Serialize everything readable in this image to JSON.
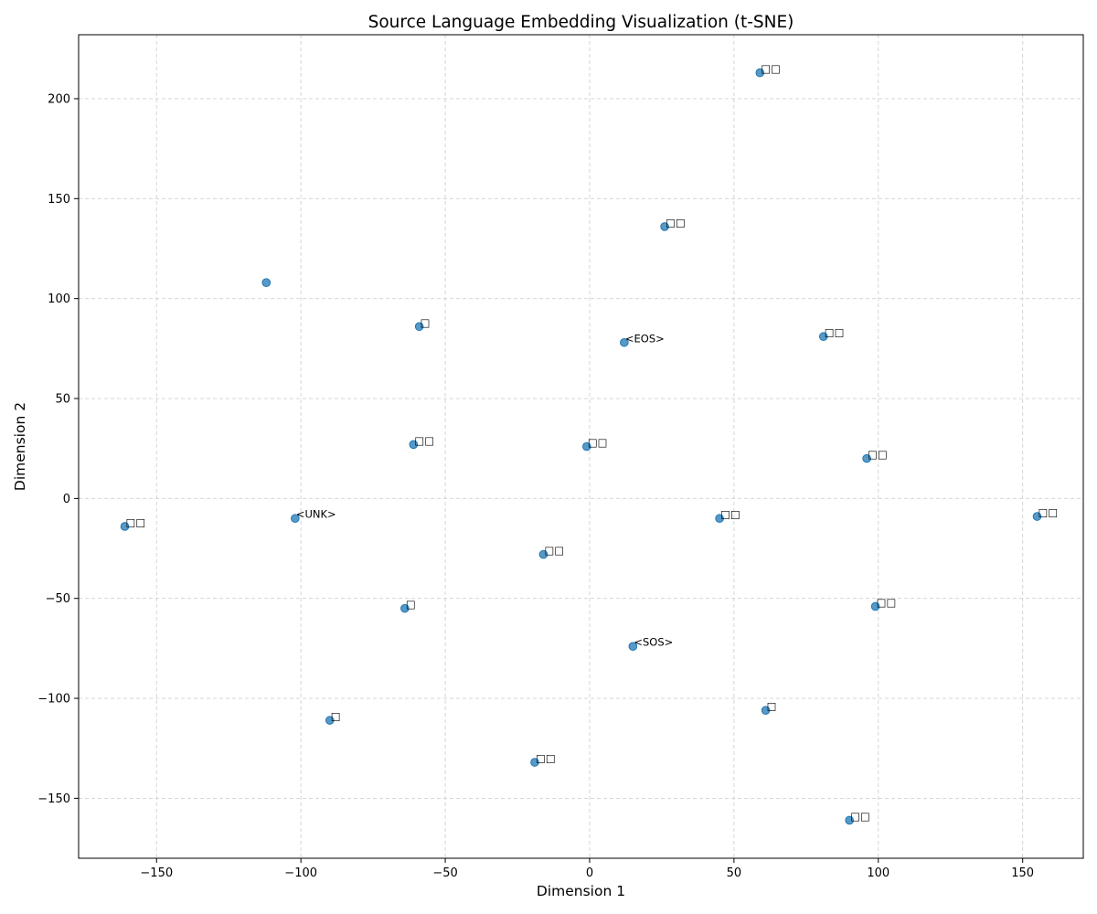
{
  "chart_data": {
    "type": "scatter",
    "title": "Source Language Embedding Visualization (t-SNE)",
    "xlabel": "Dimension 1",
    "ylabel": "Dimension 2",
    "xlim": [
      -177,
      171
    ],
    "ylim": [
      -180,
      232
    ],
    "xticks": [
      -150,
      -100,
      -50,
      0,
      50,
      100,
      150
    ],
    "yticks": [
      -150,
      -100,
      -50,
      0,
      50,
      100,
      150,
      200
    ],
    "xtick_labels": [
      "−150",
      "−100",
      "−50",
      "0",
      "50",
      "100",
      "150"
    ],
    "ytick_labels": [
      "−150",
      "−100",
      "−50",
      "0",
      "50",
      "100",
      "150",
      "200"
    ],
    "grid": true,
    "point_color": "#1f77b4",
    "points": [
      {
        "x": 59,
        "y": 213,
        "label": "□□"
      },
      {
        "x": 26,
        "y": 136,
        "label": "□□"
      },
      {
        "x": -112,
        "y": 108,
        "label": ""
      },
      {
        "x": -59,
        "y": 86,
        "label": "□"
      },
      {
        "x": 12,
        "y": 78,
        "label": "<EOS>"
      },
      {
        "x": 81,
        "y": 81,
        "label": "□□"
      },
      {
        "x": -61,
        "y": 27,
        "label": "□□"
      },
      {
        "x": -1,
        "y": 26,
        "label": "□□"
      },
      {
        "x": 96,
        "y": 20,
        "label": "□□"
      },
      {
        "x": -161,
        "y": -14,
        "label": "□□"
      },
      {
        "x": -102,
        "y": -10,
        "label": "<UNK>"
      },
      {
        "x": 45,
        "y": -10,
        "label": "□□"
      },
      {
        "x": 155,
        "y": -9,
        "label": "□□"
      },
      {
        "x": -16,
        "y": -28,
        "label": "□□"
      },
      {
        "x": -64,
        "y": -55,
        "label": "□"
      },
      {
        "x": 99,
        "y": -54,
        "label": "□□"
      },
      {
        "x": 15,
        "y": -74,
        "label": "<SOS>"
      },
      {
        "x": 61,
        "y": -106,
        "label": "□"
      },
      {
        "x": -90,
        "y": -111,
        "label": "□"
      },
      {
        "x": -19,
        "y": -132,
        "label": "□□"
      },
      {
        "x": 90,
        "y": -161,
        "label": "□□"
      }
    ]
  }
}
